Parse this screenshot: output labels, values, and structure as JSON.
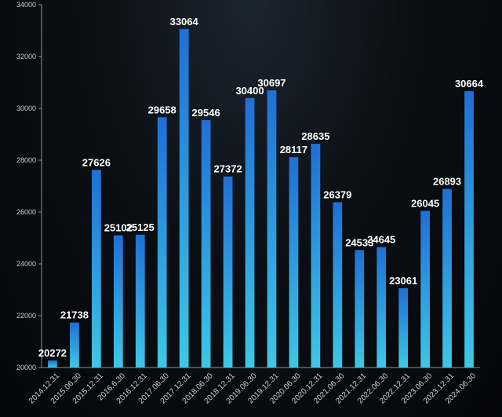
{
  "chart_data": {
    "type": "bar",
    "title": "",
    "xlabel": "",
    "ylabel": "",
    "ylim": [
      20000,
      34000
    ],
    "yticks": [
      20000,
      22000,
      24000,
      26000,
      28000,
      30000,
      32000,
      34000
    ],
    "grid": false,
    "categories": [
      "2014.12.31",
      "2015.06.30",
      "2015.12.31",
      "2016.6.30",
      "2016.12.31",
      "2017.06.30",
      "2017.12.31",
      "2018.06.30",
      "2018.12.31",
      "2019.06.30",
      "2019.12.31",
      "2020.06.30",
      "2020.12.31",
      "2021.06.30",
      "2021.12.31",
      "2022.06.30",
      "2022.12.31",
      "2023.06.30",
      "2023.12.31",
      "2024.06.30"
    ],
    "values": [
      20272,
      21738,
      27626,
      25102,
      25125,
      29658,
      33064,
      29546,
      27372,
      30400,
      30697,
      28117,
      28635,
      26379,
      24533,
      24645,
      23061,
      26045,
      26893,
      30664
    ],
    "colors": {
      "bar_top": "#1f6fd6",
      "bar_bottom": "#3cc8e6",
      "axis": "#8a939c"
    }
  }
}
